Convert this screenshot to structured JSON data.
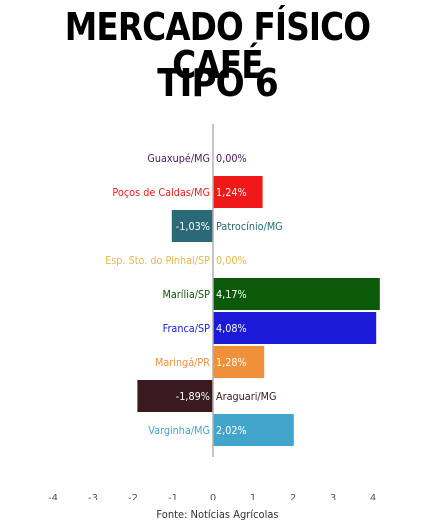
{
  "header": {
    "title_line1": "MERCADO FÍSICO CAFÉ",
    "title_line2": "TIPO 6"
  },
  "source": "Fonte: Notícias Agrícolas",
  "chart_data": {
    "type": "bar",
    "orientation": "horizontal",
    "categories": [
      "Guaxupé/MG",
      "Poços de Caldas/MG",
      "Patrocínio/MG",
      "Esp. Sto. do Pinhal/SP",
      "Marília/SP",
      "Franca/SP",
      "Maringá/PR",
      "Araguari/MG",
      "Varginha/MG"
    ],
    "values": [
      0.0,
      1.24,
      -1.03,
      0.0,
      4.17,
      4.08,
      1.28,
      -1.89,
      2.02
    ],
    "value_labels": [
      "0,00%",
      "1,24%",
      "-1,03%",
      "0,00%",
      "4,17%",
      "4,08%",
      "1,28%",
      "-1,89%",
      "2,02%"
    ],
    "colors": [
      "#4b1a5a",
      "#f01818",
      "#2a6a78",
      "#e8b84a",
      "#0a5a0a",
      "#1a1ad8",
      "#f0903a",
      "#3a1a1e",
      "#42a6cc"
    ],
    "xlim": [
      -4,
      4
    ],
    "xticks": [
      -4,
      -3,
      -2,
      -1,
      0,
      1,
      2,
      3,
      4
    ],
    "grid": false,
    "legend": "none",
    "xlabel": "",
    "ylabel": "",
    "title": "MERCADO FÍSICO CAFÉ TIPO 6"
  }
}
